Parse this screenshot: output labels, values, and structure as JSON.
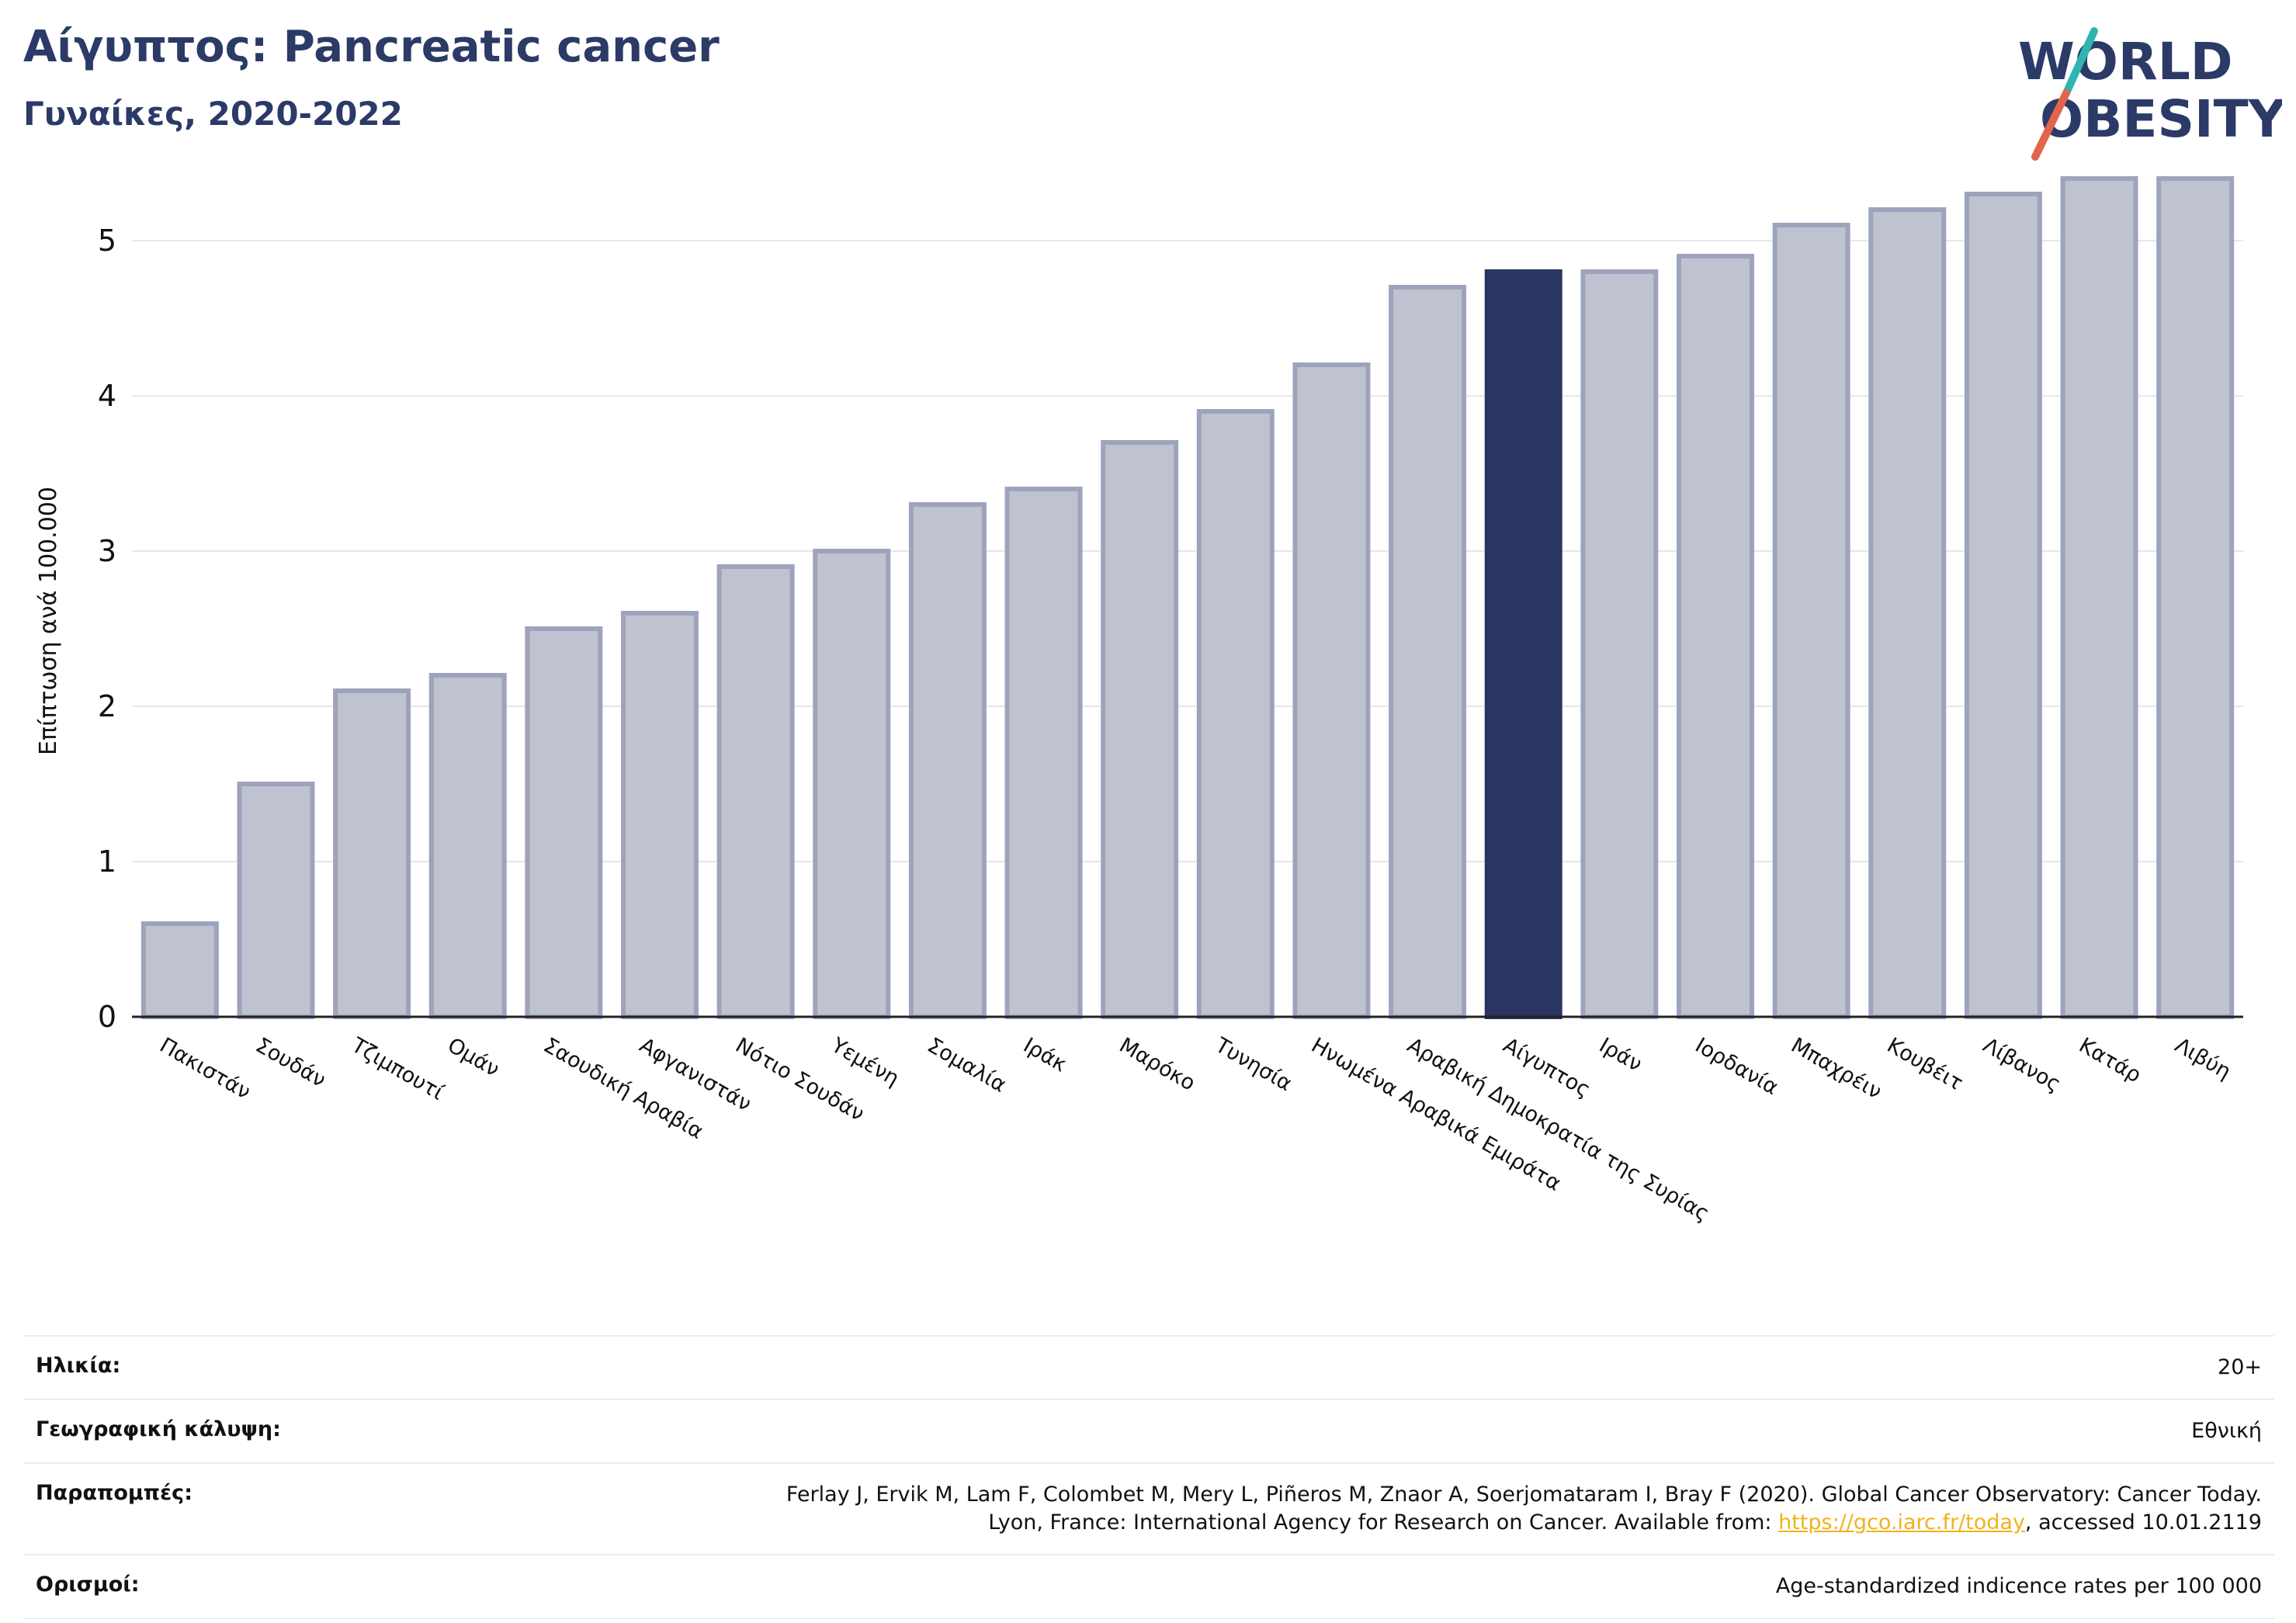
{
  "header": {
    "title": "Αίγυπτος: Pancreatic cancer",
    "subtitle": "Γυναίκες, 2020-2022"
  },
  "logo": {
    "line1": "WORLD",
    "line2": "OBESITY"
  },
  "colors": {
    "bar": "#bfc2cf",
    "bar_edge": "#9ea3bd",
    "highlight": "#2b3561",
    "title": "#2b3a67"
  },
  "chart_data": {
    "type": "bar",
    "ylabel": "Επίπτωση ανά 100.000",
    "ylim": [
      0,
      5.5
    ],
    "yticks": [
      0,
      1,
      2,
      3,
      4,
      5
    ],
    "grid": true,
    "highlight": "Αίγυπτος",
    "categories": [
      "Πακιστάν",
      "Σουδάν",
      "Τζιμπουτί",
      "Ομάν",
      "Σαουδική Αραβία",
      "Αφγανιστάν",
      "Νότιο Σουδάν",
      "Υεμένη",
      "Σομαλία",
      "Ιράκ",
      "Μαρόκο",
      "Τυνησία",
      "Ηνωμένα Αραβικά Εμιράτα",
      "Αραβική Δημοκρατία της Συρίας",
      "Αίγυπτος",
      "Ιράν",
      "Ιορδανία",
      "Μπαχρέιν",
      "Κουβέιτ",
      "Λίβανος",
      "Κατάρ",
      "Λιβύη"
    ],
    "values": [
      0.6,
      1.5,
      2.1,
      2.2,
      2.5,
      2.6,
      2.9,
      3.0,
      3.3,
      3.4,
      3.7,
      3.9,
      4.2,
      4.7,
      4.8,
      4.8,
      4.9,
      5.1,
      5.2,
      5.3,
      5.4,
      5.4
    ]
  },
  "info": {
    "age_label": "Ηλικία:",
    "age_value": "20+",
    "coverage_label": "Γεωγραφική κάλυψη:",
    "coverage_value": "Εθνική",
    "refs_label": "Παραπομπές:",
    "refs_line1": "Ferlay J, Ervik M, Lam F, Colombet M, Mery L, Piñeros M, Znaor A, Soerjomataram I, Bray F (2020). Global Cancer Observatory: Cancer Today.",
    "refs_line2_pre": "Lyon, France: International Agency for Research on Cancer. Available from: ",
    "refs_link": "https://gco.iarc.fr/today",
    "refs_line2_post": ", accessed 10.01.2119",
    "defs_label": "Ορισμοί:",
    "defs_value": "Age-standardized indicence rates per 100 000"
  }
}
